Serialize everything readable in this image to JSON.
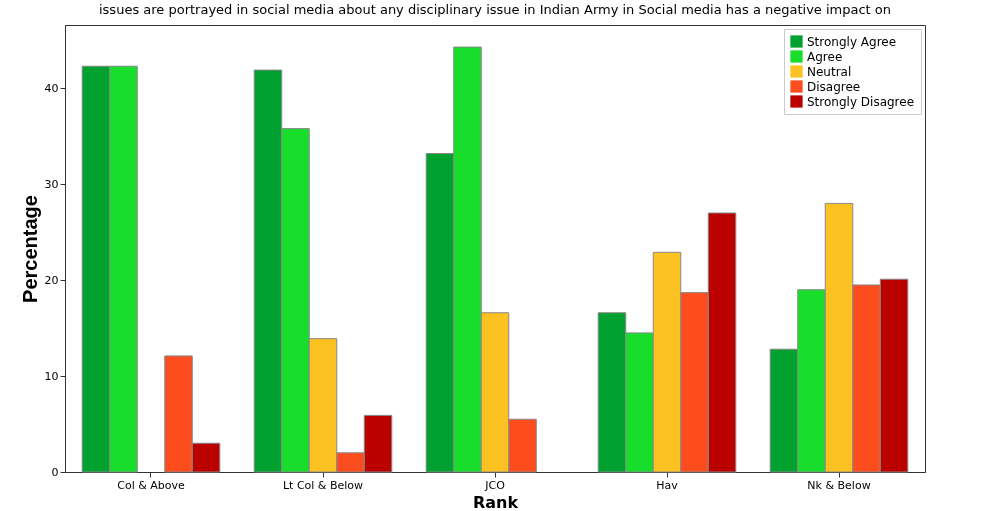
{
  "chart_data": {
    "type": "bar",
    "title": "issues are portrayed in social media about any disciplinary issue in Indian Army in Social media has a negative impact on",
    "xlabel": "Rank",
    "ylabel": "Percentage",
    "categories": [
      "Col & Above",
      "Lt Col & Below",
      "JCO",
      "Hav",
      "Nk & Below"
    ],
    "series": [
      {
        "name": "Strongly Agree",
        "color": "#00a12e",
        "values": [
          42.3,
          41.9,
          33.2,
          16.6,
          12.8
        ]
      },
      {
        "name": "Agree",
        "color": "#18dd2a",
        "values": [
          42.3,
          35.8,
          44.3,
          14.5,
          19.0
        ]
      },
      {
        "name": "Neutral",
        "color": "#fcc221",
        "values": [
          null,
          13.9,
          16.6,
          22.9,
          28.0
        ]
      },
      {
        "name": "Disagree",
        "color": "#fd4d1f",
        "values": [
          12.1,
          2.0,
          5.5,
          18.7,
          19.5
        ]
      },
      {
        "name": "Strongly Disagree",
        "color": "#bb0000",
        "values": [
          3.0,
          5.9,
          null,
          27.0,
          20.1
        ]
      }
    ],
    "ylim": [
      0,
      46.6
    ],
    "yticks": [
      0,
      10,
      20,
      30,
      40
    ],
    "grid": false,
    "legend": "top right"
  }
}
